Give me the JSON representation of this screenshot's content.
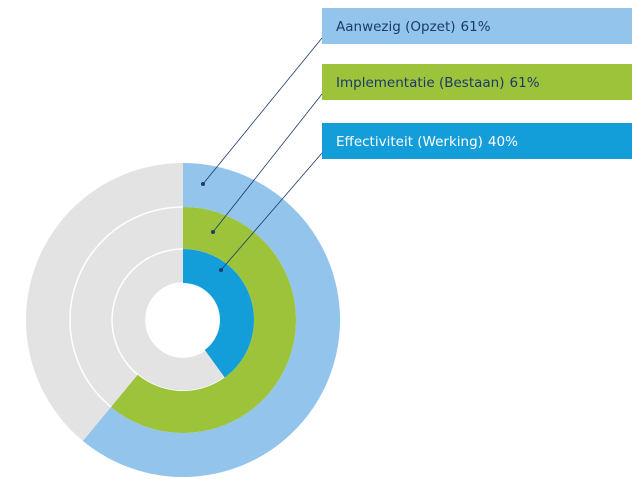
{
  "chart_data": {
    "type": "radial_bar",
    "categories": [
      "Aanwezig (Opzet)",
      "Implementatie (Bestaan)",
      "Effectiviteit (Werking)"
    ],
    "values": [
      61,
      61,
      40
    ],
    "value_labels": [
      "61%",
      "61%",
      "40%"
    ],
    "colors": [
      "#93c4ec",
      "#9dc33b",
      "#139dd9"
    ],
    "label_text_colors": [
      "#1b3a6b",
      "#1b3a6b",
      "#ffffff"
    ],
    "ylim": [
      0,
      100
    ]
  }
}
